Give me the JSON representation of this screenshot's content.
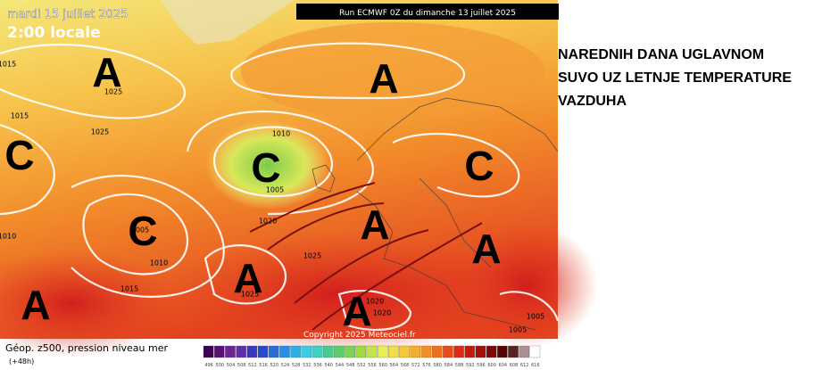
{
  "header": {
    "date": "mardi 15 juillet 2025",
    "time": "2:00 locale",
    "run": "Run ECMWF 0Z du dimanche 13 juillet 2025"
  },
  "headline": [
    "NAREDNIH DANA UGLAVNOM",
    "SUVO UZ LETNJE TEMPERATURE",
    "VAZDUHA"
  ],
  "centers": [
    "A",
    "A",
    "C",
    "C",
    "C",
    "C",
    "A",
    "A",
    "A",
    "A",
    "A"
  ],
  "isobar_labels": [
    "1015",
    "1025",
    "1015",
    "1025",
    "1010",
    "1005",
    "1020",
    "1005",
    "1010",
    "1015",
    "1025",
    "1025",
    "1020",
    "1020",
    "1005",
    "1005",
    "1010"
  ],
  "copyright": "Copyright 2025 Meteociel.fr",
  "legend": {
    "title": "Géop. z500, pression niveau mer",
    "step": "(+48h)",
    "scale": [
      "496",
      "500",
      "504",
      "508",
      "512",
      "516",
      "520",
      "524",
      "528",
      "532",
      "536",
      "540",
      "544",
      "548",
      "552",
      "556",
      "560",
      "564",
      "568",
      "572",
      "576",
      "580",
      "584",
      "588",
      "592",
      "596",
      "600",
      "604",
      "608",
      "612",
      "616"
    ]
  }
}
